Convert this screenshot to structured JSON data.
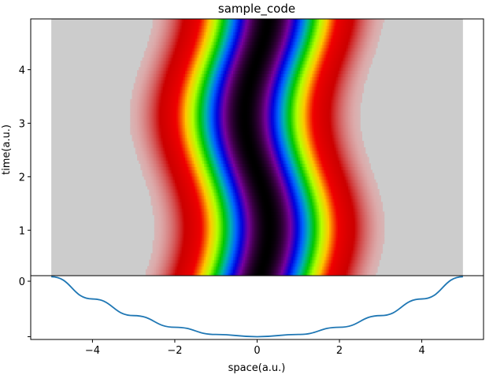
{
  "chart_data": [
    {
      "type": "heatmap",
      "title": "sample_code",
      "xlabel": "",
      "ylabel": "time(a.u.)",
      "xlim": [
        -5.5,
        5.5
      ],
      "ylim": [
        0.15,
        4.95
      ],
      "data_xlim": [
        -5.0,
        5.0
      ],
      "yticks": [
        1,
        2,
        3,
        4
      ],
      "background_color": "#cccccc",
      "colormap": "nipy_spectral (reversed)",
      "field": {
        "description_formula": "exp(-(x - 0.3*sin(1.5*t))^2 / 2)",
        "wave_amplitude": 0.3,
        "wave_frequency": 1.5,
        "width_sigma": 1.0
      }
    },
    {
      "type": "line",
      "title": "",
      "xlabel": "space(a.u.)",
      "ylabel": "",
      "xlim": [
        -5.5,
        5.5
      ],
      "ylim": [
        -1.05,
        0.1
      ],
      "xticks": [
        -4,
        -2,
        0,
        2,
        4
      ],
      "yticks": [
        0,
        -1
      ],
      "ytick_labels": [
        "0",
        ""
      ],
      "series": [
        {
          "color": "#1f77b4",
          "x": [
            -5,
            -4,
            -3,
            -2,
            -1,
            0,
            1,
            2,
            3,
            4,
            5
          ],
          "y": [
            0.08,
            -0.32,
            -0.62,
            -0.83,
            -0.96,
            -1.0,
            -0.96,
            -0.83,
            -0.62,
            -0.32,
            0.08
          ]
        }
      ]
    }
  ]
}
